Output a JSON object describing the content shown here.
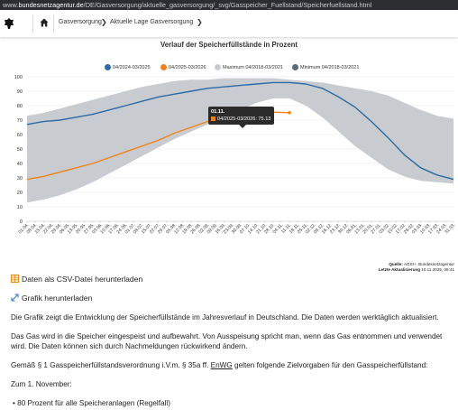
{
  "browser": {
    "url_prefix": "www.",
    "url_host": "bundesnetzagentur.de",
    "url_path": "/DE/Gasversorgung/aktuelle_gasversorgung/_svg/Gasspeicher_Fuellstand/Speicherfuellstand.html"
  },
  "breadcrumb": {
    "items": [
      {
        "label": "Gasversorgung",
        "icon": "chevron-right-icon"
      },
      {
        "label": "Aktuelle Lage Gasversorgung",
        "icon": "chevron-right-icon"
      }
    ]
  },
  "chart_data": {
    "type": "line",
    "title": "Verlauf der Speicherfüllstände in Prozent",
    "ylim": [
      0,
      100
    ],
    "yticks": [
      0,
      10,
      20,
      30,
      40,
      50,
      60,
      70,
      80,
      90,
      100
    ],
    "categories": [
      "01.04.",
      "15.04.",
      "29.04.",
      "13.05.",
      "27.05.",
      "10.06.",
      "24.06.",
      "08.07.",
      "22.07.",
      "05.08.",
      "19.08.",
      "02.09.",
      "16.09.",
      "30.09.",
      "14.10.",
      "28.10.",
      "11.11.",
      "25.11.",
      "09.12.",
      "23.12.",
      "06.01.",
      "20.01.",
      "03.02.",
      "17.02.",
      "03.03.",
      "17.03.",
      "31.03."
    ],
    "xticks": [
      "01.04.",
      "08.04.",
      "15.04.",
      "22.04.",
      "29.04.",
      "06.05.",
      "13.05.",
      "20.05.",
      "27.05.",
      "03.06.",
      "10.06.",
      "17.06.",
      "24.06.",
      "01.07.",
      "08.07.",
      "15.07.",
      "22.07.",
      "29.07.",
      "05.08.",
      "12.08.",
      "19.08.",
      "26.08.",
      "02.09.",
      "09.09.",
      "16.09.",
      "23.09.",
      "30.09.",
      "07.10.",
      "14.10.",
      "21.10.",
      "28.10.",
      "04.11.",
      "11.11.",
      "18.11.",
      "25.11.",
      "02.12.",
      "09.12.",
      "16.12.",
      "23.12.",
      "30.12.",
      "06.01.",
      "13.01.",
      "20.01.",
      "27.01.",
      "03.02.",
      "10.02.",
      "17.02.",
      "24.02.",
      "03.03.",
      "10.03.",
      "17.03.",
      "24.03.",
      "31.03."
    ],
    "series": [
      {
        "name": "04/2024-03/2025",
        "color": "#2e6aa3",
        "values": [
          67,
          69,
          70,
          72,
          74,
          77,
          80,
          83,
          86,
          88,
          90,
          92,
          93,
          94,
          95,
          96,
          96,
          95,
          92,
          86,
          79,
          69,
          58,
          46,
          37,
          32,
          29
        ]
      },
      {
        "name": "04/2025-03/2026",
        "color": "#f08219",
        "values": [
          29,
          31,
          34,
          37,
          40,
          44,
          48,
          52,
          56,
          61,
          65,
          69,
          73,
          75.5,
          76,
          75.5,
          75.13,
          null,
          null,
          null,
          null,
          null,
          null,
          null,
          null,
          null,
          null
        ]
      },
      {
        "name": "Maximum 04/2018-03/2021",
        "color": "#c8ccd1",
        "values": [
          73,
          75,
          78,
          81,
          84,
          87,
          90,
          93,
          95,
          97,
          98,
          98,
          99,
          99,
          99,
          99,
          98,
          97,
          96,
          94,
          92,
          90,
          87,
          82,
          77,
          73,
          71
        ]
      },
      {
        "name": "Minimum 04/2018-03/2021",
        "color": "#5d6b7a",
        "values": [
          13,
          15,
          18,
          22,
          27,
          33,
          39,
          45,
          51,
          57,
          62,
          67,
          72,
          77,
          82,
          85,
          85,
          80,
          72,
          62,
          52,
          44,
          36,
          31,
          28,
          27,
          26
        ]
      }
    ],
    "tooltip": {
      "date": "01.11.",
      "series": "04/2025-03/2026",
      "value": "75.13"
    },
    "grid": true,
    "legend_position": "top"
  },
  "source": {
    "label": "Quelle:",
    "text": "AGSI+, Bundesnetzagentur",
    "updated_label": "Letzte Aktualisierung",
    "updated": "10.11.2025, 08:41"
  },
  "downloads": {
    "csv": "Daten als CSV-Datei herunterladen",
    "graphic": "Grafik herunterladen"
  },
  "content": {
    "p1": "Die Grafik zeigt die Entwicklung der Speicherfüllstände im Jahresverlauf in Deutschland. Die Daten werden werktäglich aktualisiert.",
    "p2": "Das Gas wird in die Speicher eingespeist und aufbewahrt. Von Ausspeisung spricht man, wenn das Gas entnommen und verwendet wird. Die Daten können sich durch Nachmeldungen rückwirkend ändern.",
    "p3_before": "Gemäß § 1 Gasspeicherfüllstandsverordnung i.V.m. § 35a ff. ",
    "p3_link": "EnWG",
    "p3_after": " gelten folgende Zielvorgaben für den Gasspeicherfüllstand:",
    "p4": "Zum 1. November:",
    "bullet1": "80 Prozent für alle Speicheranlagen (Regelfall)"
  }
}
